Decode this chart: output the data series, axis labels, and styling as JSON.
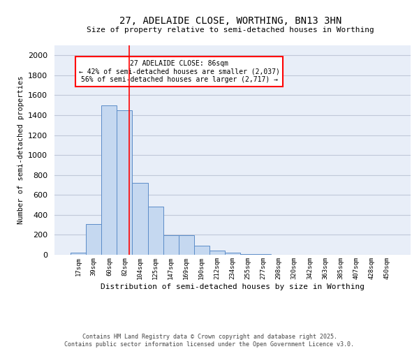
{
  "title_line1": "27, ADELAIDE CLOSE, WORTHING, BN13 3HN",
  "title_line2": "Size of property relative to semi-detached houses in Worthing",
  "xlabel": "Distribution of semi-detached houses by size in Worthing",
  "ylabel": "Number of semi-detached properties",
  "bar_color": "#c5d8f0",
  "bar_edge_color": "#5b8cc8",
  "background_color": "#e8eef8",
  "categories": [
    "17sqm",
    "39sqm",
    "60sqm",
    "82sqm",
    "104sqm",
    "125sqm",
    "147sqm",
    "169sqm",
    "190sqm",
    "212sqm",
    "234sqm",
    "255sqm",
    "277sqm",
    "298sqm",
    "320sqm",
    "342sqm",
    "363sqm",
    "385sqm",
    "407sqm",
    "428sqm",
    "450sqm"
  ],
  "values": [
    20,
    310,
    1500,
    1450,
    720,
    480,
    195,
    195,
    90,
    45,
    20,
    5,
    5,
    0,
    0,
    0,
    0,
    0,
    0,
    0,
    0
  ],
  "ylim": [
    0,
    2100
  ],
  "yticks": [
    0,
    200,
    400,
    600,
    800,
    1000,
    1200,
    1400,
    1600,
    1800,
    2000
  ],
  "red_line_x": 3.3,
  "annotation_title": "27 ADELAIDE CLOSE: 86sqm",
  "annotation_line1": "← 42% of semi-detached houses are smaller (2,037)",
  "annotation_line2": "56% of semi-detached houses are larger (2,717) →",
  "footer_line1": "Contains HM Land Registry data © Crown copyright and database right 2025.",
  "footer_line2": "Contains public sector information licensed under the Open Government Licence v3.0.",
  "grid_color": "#c0c8d8"
}
